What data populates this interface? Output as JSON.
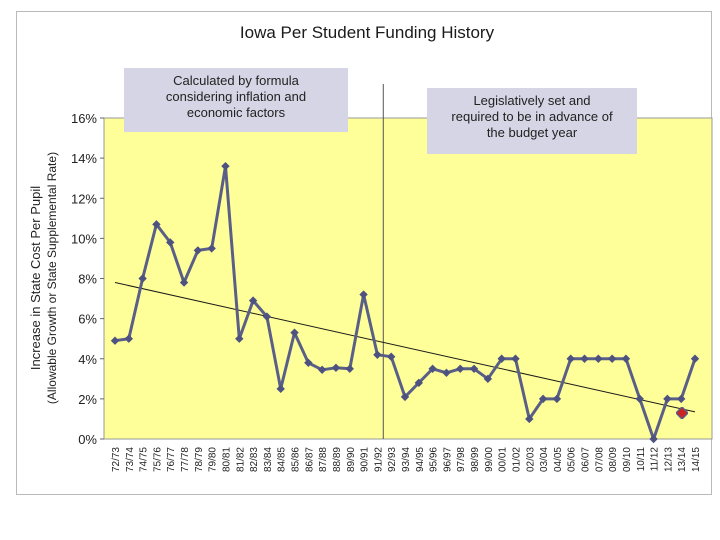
{
  "chart_data": {
    "type": "line",
    "title": "Iowa Per Student Funding History",
    "ylabel": "Increase in State Cost Per Pupil",
    "ylabel_sub": "(Allowable Growth or State Supplemental Rate)",
    "ylim": [
      0,
      16
    ],
    "yticks": [
      "0%",
      "2%",
      "4%",
      "6%",
      "8%",
      "10%",
      "12%",
      "14%",
      "16%"
    ],
    "grid": false,
    "legend": "none",
    "categories": [
      "72/73",
      "73/74",
      "74/75",
      "75/76",
      "76/77",
      "77/78",
      "78/79",
      "79/80",
      "80/81",
      "81/82",
      "82/83",
      "83/84",
      "84/85",
      "85/86",
      "86/87",
      "87/88",
      "88/89",
      "89/90",
      "90/91",
      "91/92",
      "92/93",
      "93/94",
      "94/95",
      "95/96",
      "96/97",
      "97/98",
      "98/99",
      "99/00",
      "00/01",
      "01/02",
      "02/03",
      "03/04",
      "04/05",
      "05/06",
      "06/07",
      "07/08",
      "08/09",
      "09/10",
      "10/11",
      "11/12",
      "12/13",
      "13/14",
      "14/15"
    ],
    "series": [
      {
        "values": [
          4.9,
          5.0,
          8.0,
          10.7,
          9.8,
          7.8,
          9.4,
          9.5,
          13.6,
          5.0,
          6.9,
          6.1,
          2.5,
          5.3,
          3.8,
          3.45,
          3.55,
          3.5,
          7.2,
          4.2,
          4.1,
          2.1,
          2.8,
          3.5,
          3.3,
          3.5,
          3.5,
          3.0,
          4.0,
          4.0,
          1.0,
          2.0,
          2.0,
          4.0,
          4.0,
          4.0,
          4.0,
          4.0,
          2.0,
          0.0,
          2.0,
          2.0,
          4.0
        ]
      }
    ],
    "trendline": {
      "start": 7.8,
      "end": 1.35
    },
    "annotations": [
      {
        "lines": [
          "Calculated by formula",
          "considering inflation and",
          "economic factors"
        ]
      },
      {
        "lines": [
          "Legislatively set and",
          "required to be in advance of",
          "the budget year"
        ]
      }
    ],
    "divider_after_category": "91/92",
    "colors": {
      "plot_bg": "#ffff99",
      "line": "#5a5f87",
      "marker": "#4d5280",
      "trend": "#1a1a1a",
      "annotation_bg": "#d5d5e5",
      "outside_marker": "#cc2222"
    }
  }
}
